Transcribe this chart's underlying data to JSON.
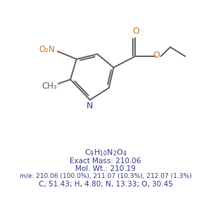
{
  "line2": "Exact Mass: 210.06",
  "line3": "Mol. Wt.: 210.19",
  "line4": "m/e: 210.06 (100.0%), 211.07 (10.3%), 212.07 (1.3%)",
  "line5": "C, 51.43; H, 4.80; N, 13.33; O, 30.45",
  "text_color": "#3a3a8c",
  "bg_color": "#ffffff",
  "bond_color": "#606060",
  "nitrogen_color": "#3a3a8c",
  "oxygen_color": "#c87828",
  "methyl_color": "#606060",
  "lw": 1.4,
  "dlw": 1.4
}
